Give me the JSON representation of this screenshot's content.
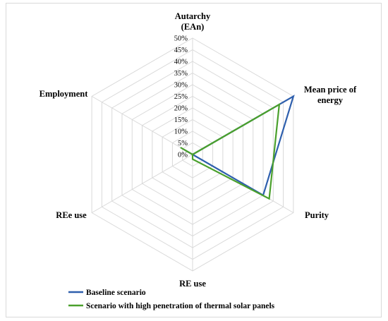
{
  "chart_data": {
    "type": "radar",
    "axes": [
      {
        "label_lines": [
          "Autarchy",
          "(EAn)"
        ]
      },
      {
        "label_lines": [
          "Mean price of",
          "energy"
        ]
      },
      {
        "label_lines": [
          "Purity"
        ]
      },
      {
        "label_lines": [
          "RE use"
        ]
      },
      {
        "label_lines": [
          "REe use"
        ]
      },
      {
        "label_lines": [
          "Employment"
        ]
      }
    ],
    "ticks": [
      "0%",
      "5%",
      "10%",
      "15%",
      "20%",
      "25%",
      "30%",
      "35%",
      "40%",
      "45%",
      "50%"
    ],
    "rlim": [
      0,
      50
    ],
    "grid": true,
    "legend_position": "bottom-left",
    "series": [
      {
        "name": "Baseline scenario",
        "color": "#2e5fad",
        "values": [
          0,
          50,
          35,
          0,
          0,
          4
        ]
      },
      {
        "name": "Scenario with high penetration of thermal solar panels",
        "color": "#4aa02c",
        "values": [
          0,
          43,
          38,
          2,
          0,
          6
        ]
      }
    ]
  }
}
